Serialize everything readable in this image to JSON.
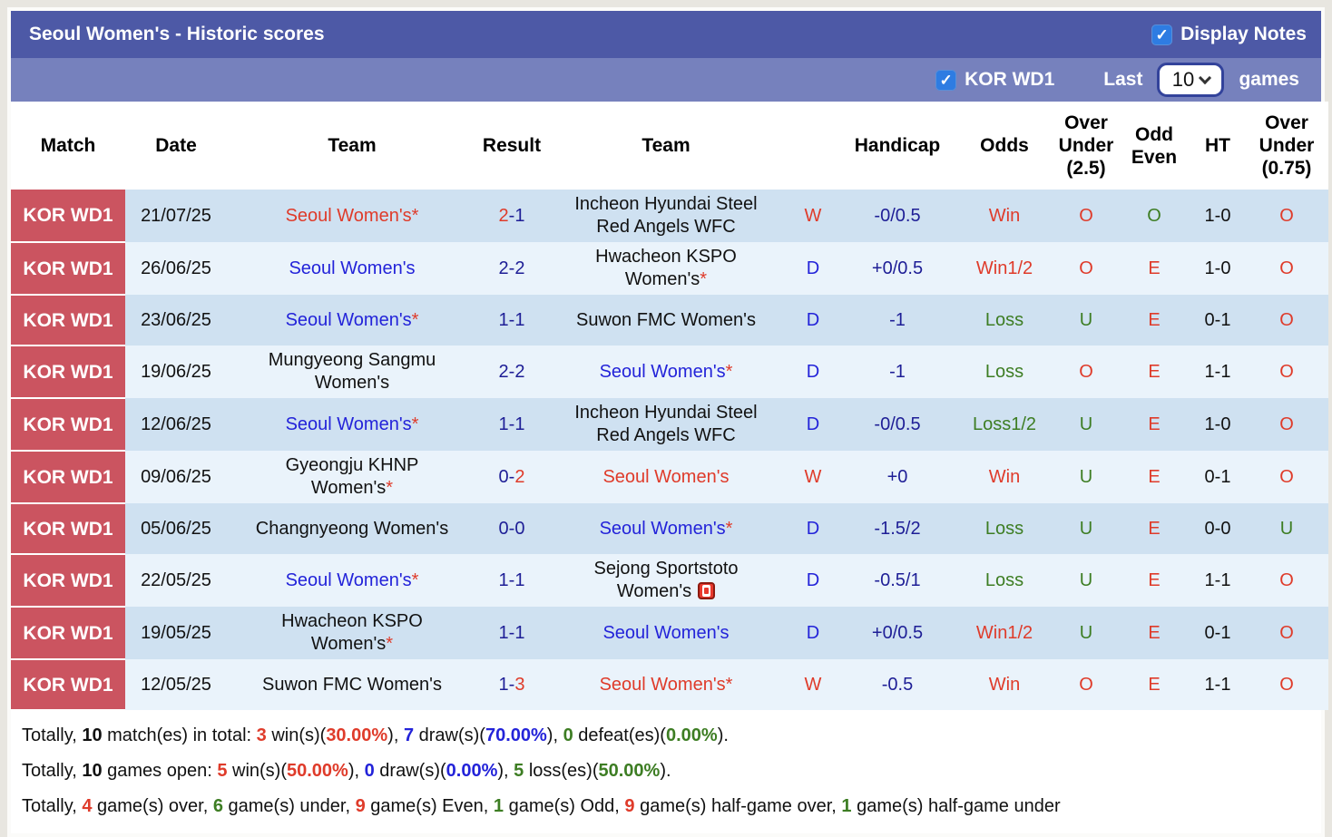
{
  "header": {
    "title": "Seoul Women's - Historic scores",
    "display_notes_label": "Display Notes",
    "league_label": "KOR WD1",
    "last_label": "Last",
    "games_count": "10",
    "games_label": "games"
  },
  "colors": {
    "titlebar": "#4d59a6",
    "subheader": "#7681bd",
    "match_column": "#cb5460",
    "row_dark": "#cfe1f1",
    "row_light": "#eaf3fb",
    "accent_red": "#df3b2a",
    "accent_blue": "#2323d9",
    "accent_navy": "#1e1e96",
    "accent_green": "#3d7d23",
    "checkbox_blue": "#2e7ce2"
  },
  "icons": {
    "display_notes_checkbox": "checked-checkbox-icon",
    "league_checkbox": "checked-checkbox-icon",
    "select_chevron": "chevron-down-icon",
    "sejong_badge": "red-card-icon"
  },
  "table": {
    "columns": [
      {
        "id": "match",
        "lines": [
          "Match"
        ]
      },
      {
        "id": "date",
        "lines": [
          "Date"
        ]
      },
      {
        "id": "team-home",
        "lines": [
          "Team"
        ]
      },
      {
        "id": "result",
        "lines": [
          "Result"
        ]
      },
      {
        "id": "team-away",
        "lines": [
          "Team"
        ]
      },
      {
        "id": "wdl",
        "lines": [
          ""
        ]
      },
      {
        "id": "handicap",
        "lines": [
          "Handicap"
        ]
      },
      {
        "id": "odds",
        "lines": [
          "Odds"
        ]
      },
      {
        "id": "over-under-25",
        "lines": [
          "Over",
          "Under",
          "(2.5)"
        ]
      },
      {
        "id": "odd-even",
        "lines": [
          "Odd",
          "Even"
        ]
      },
      {
        "id": "ht",
        "lines": [
          "HT"
        ]
      },
      {
        "id": "over-under-075",
        "lines": [
          "Over",
          "Under",
          "(0.75)"
        ]
      }
    ],
    "rows": [
      {
        "match": "KOR WD1",
        "date": "21/07/25",
        "home": {
          "lines": [
            "Seoul Women's"
          ],
          "star": true,
          "cls": "red"
        },
        "score": {
          "home": "2",
          "away": "1",
          "home_cls": "red",
          "away_cls": "navy"
        },
        "away": {
          "lines": [
            "Incheon Hyundai Steel",
            "Red Angels WFC"
          ],
          "star": false,
          "cls": "black"
        },
        "wdl": {
          "t": "W",
          "cls": "red"
        },
        "handicap": {
          "t": "-0/0.5",
          "cls": "navy"
        },
        "odds": {
          "t": "Win",
          "cls": "red"
        },
        "ou25": {
          "t": "O",
          "cls": "red"
        },
        "oe": {
          "t": "O",
          "cls": "green"
        },
        "ht": {
          "t": "1-0",
          "cls": "black"
        },
        "ou075": {
          "t": "O",
          "cls": "red"
        }
      },
      {
        "match": "KOR WD1",
        "date": "26/06/25",
        "home": {
          "lines": [
            "Seoul Women's"
          ],
          "star": false,
          "cls": "blue"
        },
        "score": {
          "home": "2",
          "away": "2",
          "home_cls": "navy",
          "away_cls": "navy"
        },
        "away": {
          "lines": [
            "Hwacheon KSPO",
            "Women's"
          ],
          "star": true,
          "cls": "black"
        },
        "wdl": {
          "t": "D",
          "cls": "blue"
        },
        "handicap": {
          "t": "+0/0.5",
          "cls": "navy"
        },
        "odds": {
          "t": "Win1/2",
          "cls": "red"
        },
        "ou25": {
          "t": "O",
          "cls": "red"
        },
        "oe": {
          "t": "E",
          "cls": "red"
        },
        "ht": {
          "t": "1-0",
          "cls": "black"
        },
        "ou075": {
          "t": "O",
          "cls": "red"
        }
      },
      {
        "match": "KOR WD1",
        "date": "23/06/25",
        "home": {
          "lines": [
            "Seoul Women's"
          ],
          "star": true,
          "cls": "blue"
        },
        "score": {
          "home": "1",
          "away": "1",
          "home_cls": "navy",
          "away_cls": "navy"
        },
        "away": {
          "lines": [
            "Suwon FMC Women's"
          ],
          "star": false,
          "cls": "black"
        },
        "wdl": {
          "t": "D",
          "cls": "blue"
        },
        "handicap": {
          "t": "-1",
          "cls": "navy"
        },
        "odds": {
          "t": "Loss",
          "cls": "green"
        },
        "ou25": {
          "t": "U",
          "cls": "green"
        },
        "oe": {
          "t": "E",
          "cls": "red"
        },
        "ht": {
          "t": "0-1",
          "cls": "black"
        },
        "ou075": {
          "t": "O",
          "cls": "red"
        }
      },
      {
        "match": "KOR WD1",
        "date": "19/06/25",
        "home": {
          "lines": [
            "Mungyeong Sangmu",
            "Women's"
          ],
          "star": false,
          "cls": "black"
        },
        "score": {
          "home": "2",
          "away": "2",
          "home_cls": "navy",
          "away_cls": "navy"
        },
        "away": {
          "lines": [
            "Seoul Women's"
          ],
          "star": true,
          "cls": "blue"
        },
        "wdl": {
          "t": "D",
          "cls": "blue"
        },
        "handicap": {
          "t": "-1",
          "cls": "navy"
        },
        "odds": {
          "t": "Loss",
          "cls": "green"
        },
        "ou25": {
          "t": "O",
          "cls": "red"
        },
        "oe": {
          "t": "E",
          "cls": "red"
        },
        "ht": {
          "t": "1-1",
          "cls": "black"
        },
        "ou075": {
          "t": "O",
          "cls": "red"
        }
      },
      {
        "match": "KOR WD1",
        "date": "12/06/25",
        "home": {
          "lines": [
            "Seoul Women's"
          ],
          "star": true,
          "cls": "blue"
        },
        "score": {
          "home": "1",
          "away": "1",
          "home_cls": "navy",
          "away_cls": "navy"
        },
        "away": {
          "lines": [
            "Incheon Hyundai Steel",
            "Red Angels WFC"
          ],
          "star": false,
          "cls": "black"
        },
        "wdl": {
          "t": "D",
          "cls": "blue"
        },
        "handicap": {
          "t": "-0/0.5",
          "cls": "navy"
        },
        "odds": {
          "t": "Loss1/2",
          "cls": "green"
        },
        "ou25": {
          "t": "U",
          "cls": "green"
        },
        "oe": {
          "t": "E",
          "cls": "red"
        },
        "ht": {
          "t": "1-0",
          "cls": "black"
        },
        "ou075": {
          "t": "O",
          "cls": "red"
        }
      },
      {
        "match": "KOR WD1",
        "date": "09/06/25",
        "home": {
          "lines": [
            "Gyeongju KHNP",
            "Women's"
          ],
          "star": true,
          "cls": "black"
        },
        "score": {
          "home": "0",
          "away": "2",
          "home_cls": "navy",
          "away_cls": "red"
        },
        "away": {
          "lines": [
            "Seoul Women's"
          ],
          "star": false,
          "cls": "red"
        },
        "wdl": {
          "t": "W",
          "cls": "red"
        },
        "handicap": {
          "t": "+0",
          "cls": "navy"
        },
        "odds": {
          "t": "Win",
          "cls": "red"
        },
        "ou25": {
          "t": "U",
          "cls": "green"
        },
        "oe": {
          "t": "E",
          "cls": "red"
        },
        "ht": {
          "t": "0-1",
          "cls": "black"
        },
        "ou075": {
          "t": "O",
          "cls": "red"
        }
      },
      {
        "match": "KOR WD1",
        "date": "05/06/25",
        "home": {
          "lines": [
            "Changnyeong Women's"
          ],
          "star": false,
          "cls": "black"
        },
        "score": {
          "home": "0",
          "away": "0",
          "home_cls": "navy",
          "away_cls": "navy"
        },
        "away": {
          "lines": [
            "Seoul Women's"
          ],
          "star": true,
          "cls": "blue"
        },
        "wdl": {
          "t": "D",
          "cls": "blue"
        },
        "handicap": {
          "t": "-1.5/2",
          "cls": "navy"
        },
        "odds": {
          "t": "Loss",
          "cls": "green"
        },
        "ou25": {
          "t": "U",
          "cls": "green"
        },
        "oe": {
          "t": "E",
          "cls": "red"
        },
        "ht": {
          "t": "0-0",
          "cls": "black"
        },
        "ou075": {
          "t": "U",
          "cls": "green"
        }
      },
      {
        "match": "KOR WD1",
        "date": "22/05/25",
        "home": {
          "lines": [
            "Seoul Women's"
          ],
          "star": true,
          "cls": "blue"
        },
        "score": {
          "home": "1",
          "away": "1",
          "home_cls": "navy",
          "away_cls": "navy"
        },
        "away": {
          "lines": [
            "Sejong Sportstoto",
            "Women's"
          ],
          "star": false,
          "cls": "black",
          "icon": "red-card-icon"
        },
        "wdl": {
          "t": "D",
          "cls": "blue"
        },
        "handicap": {
          "t": "-0.5/1",
          "cls": "navy"
        },
        "odds": {
          "t": "Loss",
          "cls": "green"
        },
        "ou25": {
          "t": "U",
          "cls": "green"
        },
        "oe": {
          "t": "E",
          "cls": "red"
        },
        "ht": {
          "t": "1-1",
          "cls": "black"
        },
        "ou075": {
          "t": "O",
          "cls": "red"
        }
      },
      {
        "match": "KOR WD1",
        "date": "19/05/25",
        "home": {
          "lines": [
            "Hwacheon KSPO",
            "Women's"
          ],
          "star": true,
          "cls": "black"
        },
        "score": {
          "home": "1",
          "away": "1",
          "home_cls": "navy",
          "away_cls": "navy"
        },
        "away": {
          "lines": [
            "Seoul Women's"
          ],
          "star": false,
          "cls": "blue"
        },
        "wdl": {
          "t": "D",
          "cls": "blue"
        },
        "handicap": {
          "t": "+0/0.5",
          "cls": "navy"
        },
        "odds": {
          "t": "Win1/2",
          "cls": "red"
        },
        "ou25": {
          "t": "U",
          "cls": "green"
        },
        "oe": {
          "t": "E",
          "cls": "red"
        },
        "ht": {
          "t": "0-1",
          "cls": "black"
        },
        "ou075": {
          "t": "O",
          "cls": "red"
        }
      },
      {
        "match": "KOR WD1",
        "date": "12/05/25",
        "home": {
          "lines": [
            "Suwon FMC Women's"
          ],
          "star": false,
          "cls": "black"
        },
        "score": {
          "home": "1",
          "away": "3",
          "home_cls": "navy",
          "away_cls": "red"
        },
        "away": {
          "lines": [
            "Seoul Women's"
          ],
          "star": true,
          "cls": "red"
        },
        "wdl": {
          "t": "W",
          "cls": "red"
        },
        "handicap": {
          "t": "-0.5",
          "cls": "navy"
        },
        "odds": {
          "t": "Win",
          "cls": "red"
        },
        "ou25": {
          "t": "O",
          "cls": "red"
        },
        "oe": {
          "t": "E",
          "cls": "red"
        },
        "ht": {
          "t": "1-1",
          "cls": "black"
        },
        "ou075": {
          "t": "O",
          "cls": "red"
        }
      }
    ]
  },
  "footer": {
    "lines": [
      [
        {
          "t": "Totally, "
        },
        {
          "t": "10",
          "b": true
        },
        {
          "t": " match(es) in total: "
        },
        {
          "t": "3",
          "b": true,
          "cls": "red"
        },
        {
          "t": " win(s)("
        },
        {
          "t": "30.00%",
          "b": true,
          "cls": "red"
        },
        {
          "t": "), "
        },
        {
          "t": "7",
          "b": true,
          "cls": "blue"
        },
        {
          "t": " draw(s)("
        },
        {
          "t": "70.00%",
          "b": true,
          "cls": "blue"
        },
        {
          "t": "), "
        },
        {
          "t": "0",
          "b": true,
          "cls": "green"
        },
        {
          "t": " defeat(es)("
        },
        {
          "t": "0.00%",
          "b": true,
          "cls": "green"
        },
        {
          "t": ")."
        }
      ],
      [
        {
          "t": "Totally, "
        },
        {
          "t": "10",
          "b": true
        },
        {
          "t": " games open: "
        },
        {
          "t": "5",
          "b": true,
          "cls": "red"
        },
        {
          "t": " win(s)("
        },
        {
          "t": "50.00%",
          "b": true,
          "cls": "red"
        },
        {
          "t": "), "
        },
        {
          "t": "0",
          "b": true,
          "cls": "blue"
        },
        {
          "t": " draw(s)("
        },
        {
          "t": "0.00%",
          "b": true,
          "cls": "blue"
        },
        {
          "t": "), "
        },
        {
          "t": "5",
          "b": true,
          "cls": "green"
        },
        {
          "t": " loss(es)("
        },
        {
          "t": "50.00%",
          "b": true,
          "cls": "green"
        },
        {
          "t": ")."
        }
      ],
      [
        {
          "t": "Totally, "
        },
        {
          "t": "4",
          "b": true,
          "cls": "red"
        },
        {
          "t": " game(s) over, "
        },
        {
          "t": "6",
          "b": true,
          "cls": "green"
        },
        {
          "t": " game(s) under, "
        },
        {
          "t": "9",
          "b": true,
          "cls": "red"
        },
        {
          "t": " game(s) Even, "
        },
        {
          "t": "1",
          "b": true,
          "cls": "green"
        },
        {
          "t": " game(s) Odd, "
        },
        {
          "t": "9",
          "b": true,
          "cls": "red"
        },
        {
          "t": " game(s) half-game over, "
        },
        {
          "t": "1",
          "b": true,
          "cls": "green"
        },
        {
          "t": " game(s) half-game under"
        }
      ]
    ]
  }
}
